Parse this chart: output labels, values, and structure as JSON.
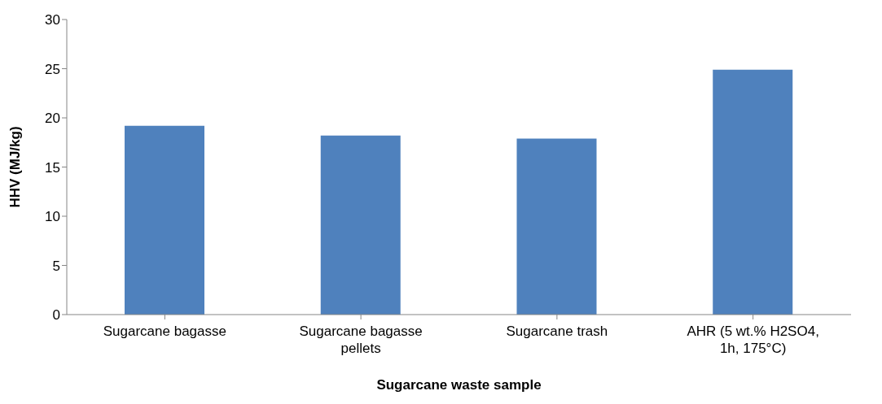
{
  "chart_data": {
    "type": "bar",
    "xlabel": "Sugarcane waste sample",
    "ylabel": "HHV (MJ/kg)",
    "categories": [
      "Sugarcane bagasse",
      "Sugarcane bagasse pellets",
      "Sugarcane trash",
      "AHR (5 wt.% H2SO4, 1h, 175°C)"
    ],
    "values": [
      19.2,
      18.2,
      17.9,
      24.9
    ],
    "color": "#4f81bd",
    "ylim": [
      0,
      30
    ],
    "yticks": [
      0,
      5,
      10,
      15,
      20,
      25,
      30
    ],
    "grid": false,
    "legend": false
  }
}
